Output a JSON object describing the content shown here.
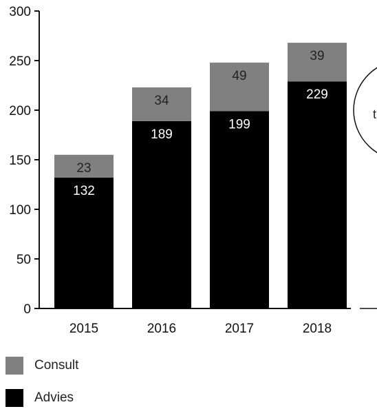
{
  "chart_data": {
    "type": "bar",
    "stacked": true,
    "categories": [
      "2015",
      "2016",
      "2017",
      "2018"
    ],
    "series": [
      {
        "name": "Advies",
        "color": "#000000",
        "label_color": "#ffffff",
        "values": [
          132,
          189,
          199,
          229
        ]
      },
      {
        "name": "Consult",
        "color": "#808080",
        "label_color": "#222222",
        "values": [
          23,
          34,
          49,
          39
        ]
      }
    ],
    "yticks": [
      0,
      50,
      100,
      150,
      200,
      250,
      300
    ],
    "ylim": [
      0,
      300
    ],
    "grid": false,
    "legend_position": "bottom-left",
    "annotation": {
      "text": "t",
      "shape": "ellipse",
      "partially_visible": true
    }
  }
}
